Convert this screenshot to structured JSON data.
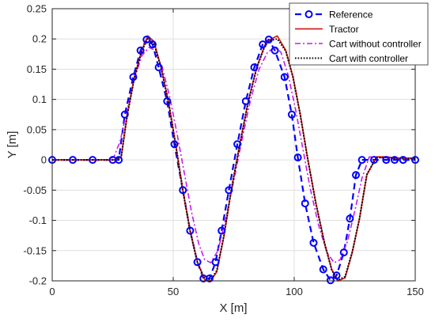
{
  "chart_data": {
    "type": "line",
    "title": "",
    "xlabel": "X [m]",
    "ylabel": "Y [m]",
    "xlim": [
      0,
      150
    ],
    "ylim": [
      -0.2,
      0.25
    ],
    "xticks": [
      0,
      50,
      100,
      150
    ],
    "yticks": [
      -0.2,
      -0.15,
      -0.1,
      -0.05,
      0,
      0.05,
      0.1,
      0.15,
      0.2,
      0.25
    ],
    "xtick_labels": [
      "0",
      "50",
      "100",
      "150"
    ],
    "ytick_labels": [
      "-0.2",
      "-0.15",
      "-0.1",
      "-0.05",
      "0",
      "0.05",
      "0.1",
      "0.15",
      "0.2",
      "0.25"
    ],
    "grid": true,
    "legend_position": "top-right",
    "series": [
      {
        "name": "Reference",
        "style": "dashed-with-circle-markers",
        "color": "#0000ff",
        "x": [
          0,
          8.5,
          16.7,
          25,
          27.5,
          30,
          33.5,
          36.5,
          39,
          41.5,
          44,
          47.5,
          50.5,
          54,
          57,
          60,
          62.5,
          65,
          67.5,
          70,
          73,
          76.5,
          80,
          83.5,
          87,
          89.5,
          92,
          96,
          99,
          101.5,
          104.5,
          108,
          112,
          115,
          117.5,
          120.5,
          123,
          125.5,
          128,
          133,
          138,
          141.5,
          145,
          150
        ],
        "y": [
          0,
          0,
          0,
          0,
          0,
          0.075,
          0.137,
          0.181,
          0.199,
          0.191,
          0.153,
          0.097,
          0.026,
          -0.05,
          -0.117,
          -0.169,
          -0.196,
          -0.196,
          -0.169,
          -0.117,
          -0.05,
          0.026,
          0.097,
          0.153,
          0.191,
          0.199,
          0.181,
          0.137,
          0.075,
          0.004,
          -0.072,
          -0.137,
          -0.181,
          -0.199,
          -0.191,
          -0.153,
          -0.097,
          -0.025,
          0,
          0,
          0,
          0,
          0,
          0
        ]
      },
      {
        "name": "Tractor",
        "style": "solid",
        "color": "#d62020",
        "x": [
          0,
          26,
          28.5,
          31,
          34,
          37,
          39.5,
          42,
          45,
          48,
          51,
          54,
          57,
          60,
          63,
          65.5,
          68,
          71,
          74,
          77.5,
          81,
          84.5,
          88,
          90.5,
          93,
          96.5,
          99.5,
          102.5,
          105.5,
          109,
          112.5,
          115.5,
          118,
          121,
          124,
          127,
          130,
          134,
          138,
          142,
          150
        ],
        "y": [
          0,
          0,
          0.005,
          0.075,
          0.137,
          0.181,
          0.205,
          0.196,
          0.153,
          0.097,
          0.026,
          -0.05,
          -0.117,
          -0.169,
          -0.198,
          -0.2,
          -0.185,
          -0.125,
          -0.05,
          0.026,
          0.097,
          0.153,
          0.191,
          0.2,
          0.205,
          0.181,
          0.137,
          0.075,
          0.004,
          -0.072,
          -0.137,
          -0.181,
          -0.2,
          -0.195,
          -0.153,
          -0.097,
          -0.025,
          0.005,
          0.005,
          0.003,
          0.003
        ]
      },
      {
        "name": "Cart without controller",
        "style": "dash-dot",
        "color": "#c51bf0",
        "x": [
          0,
          23,
          25.5,
          28,
          31,
          34,
          37,
          40,
          42.5,
          45.5,
          48.5,
          51.5,
          54.5,
          57.5,
          60.5,
          63,
          65.5,
          68.5,
          71.5,
          75,
          78.5,
          82,
          85.5,
          89,
          92,
          94.5,
          97.5,
          100.5,
          103.5,
          106.5,
          110,
          113.5,
          116.5,
          119,
          122,
          125,
          128,
          131,
          135,
          140,
          150
        ],
        "y": [
          0,
          0,
          0.005,
          0.03,
          0.083,
          0.134,
          0.172,
          0.186,
          0.181,
          0.153,
          0.105,
          0.045,
          -0.02,
          -0.085,
          -0.138,
          -0.165,
          -0.17,
          -0.15,
          -0.1,
          -0.035,
          0.035,
          0.1,
          0.15,
          0.178,
          0.186,
          0.178,
          0.14,
          0.085,
          0.02,
          -0.045,
          -0.107,
          -0.153,
          -0.17,
          -0.165,
          -0.135,
          -0.085,
          -0.03,
          0.005,
          0.004,
          0.002,
          0.002
        ]
      },
      {
        "name": "Cart with controller",
        "style": "dotted",
        "color": "#000000",
        "x": [
          0,
          26,
          28.5,
          31,
          34,
          37,
          39.5,
          42,
          45,
          48,
          51,
          54,
          57,
          60,
          63,
          65.5,
          68,
          71,
          74,
          77.5,
          81,
          84.5,
          88,
          90.5,
          93,
          96.5,
          99.5,
          102.5,
          105.5,
          109,
          112.5,
          115.5,
          118,
          121,
          124,
          127,
          130,
          134,
          138,
          142,
          150
        ],
        "y": [
          0,
          0,
          0.004,
          0.074,
          0.136,
          0.18,
          0.2,
          0.193,
          0.152,
          0.096,
          0.025,
          -0.051,
          -0.118,
          -0.17,
          -0.196,
          -0.198,
          -0.183,
          -0.124,
          -0.05,
          0.025,
          0.096,
          0.152,
          0.19,
          0.198,
          0.2,
          0.18,
          0.136,
          0.074,
          0.003,
          -0.073,
          -0.138,
          -0.182,
          -0.199,
          -0.193,
          -0.152,
          -0.096,
          -0.024,
          0.004,
          0.004,
          0.002,
          0.002
        ]
      }
    ]
  }
}
